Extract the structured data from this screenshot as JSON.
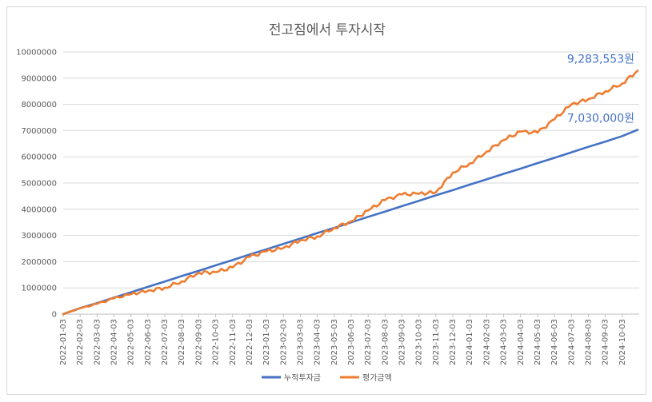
{
  "chart_data": {
    "type": "line",
    "title": "전고점에서 투자시작",
    "xlabel": "",
    "ylabel": "",
    "ylim": [
      0,
      10000000
    ],
    "yticks": [
      "0",
      "1000000",
      "2000000",
      "3000000",
      "4000000",
      "5000000",
      "6000000",
      "7000000",
      "8000000",
      "9000000",
      "10000000"
    ],
    "x": [
      "2022-01-03",
      "2022-02-03",
      "2022-03-03",
      "2022-04-03",
      "2022-05-03",
      "2022-06-03",
      "2022-07-03",
      "2022-08-03",
      "2022-09-03",
      "2022-10-03",
      "2022-11-03",
      "2022-12-03",
      "2023-01-03",
      "2023-02-03",
      "2023-03-03",
      "2023-04-03",
      "2023-05-03",
      "2023-06-03",
      "2023-07-03",
      "2023-08-03",
      "2023-09-03",
      "2023-10-03",
      "2023-11-03",
      "2023-12-03",
      "2024-01-03",
      "2024-02-03",
      "2024-03-03",
      "2024-04-03",
      "2024-05-03",
      "2024-06-03",
      "2024-07-03",
      "2024-08-03",
      "2024-09-03",
      "2024-10-03"
    ],
    "legend_position": "bottom",
    "grid": true,
    "series": [
      {
        "name": "누적투자금",
        "color": "#4472c4",
        "values": [
          0,
          230000,
          420000,
          630000,
          830000,
          1040000,
          1240000,
          1450000,
          1650000,
          1860000,
          2060000,
          2270000,
          2470000,
          2680000,
          2880000,
          3090000,
          3290000,
          3500000,
          3710000,
          3910000,
          4120000,
          4320000,
          4530000,
          4730000,
          4940000,
          5140000,
          5350000,
          5550000,
          5760000,
          5960000,
          6170000,
          6380000,
          6580000,
          6790000
        ],
        "end_value": 7030000
      },
      {
        "name": "평가금액",
        "color": "#ed7d31",
        "values": [
          0,
          220000,
          390000,
          600000,
          760000,
          890000,
          1010000,
          1250000,
          1580000,
          1600000,
          1780000,
          2180000,
          2390000,
          2520000,
          2820000,
          2960000,
          3290000,
          3540000,
          3950000,
          4350000,
          4560000,
          4590000,
          4650000,
          5400000,
          5750000,
          6200000,
          6640000,
          6960000,
          6920000,
          7430000,
          8000000,
          8200000,
          8500000,
          8800000
        ],
        "end_value": 9283553
      }
    ],
    "annotations": [
      {
        "text": "9,283,553원",
        "series": 1
      },
      {
        "text": "7,030,000원",
        "series": 0
      }
    ]
  }
}
